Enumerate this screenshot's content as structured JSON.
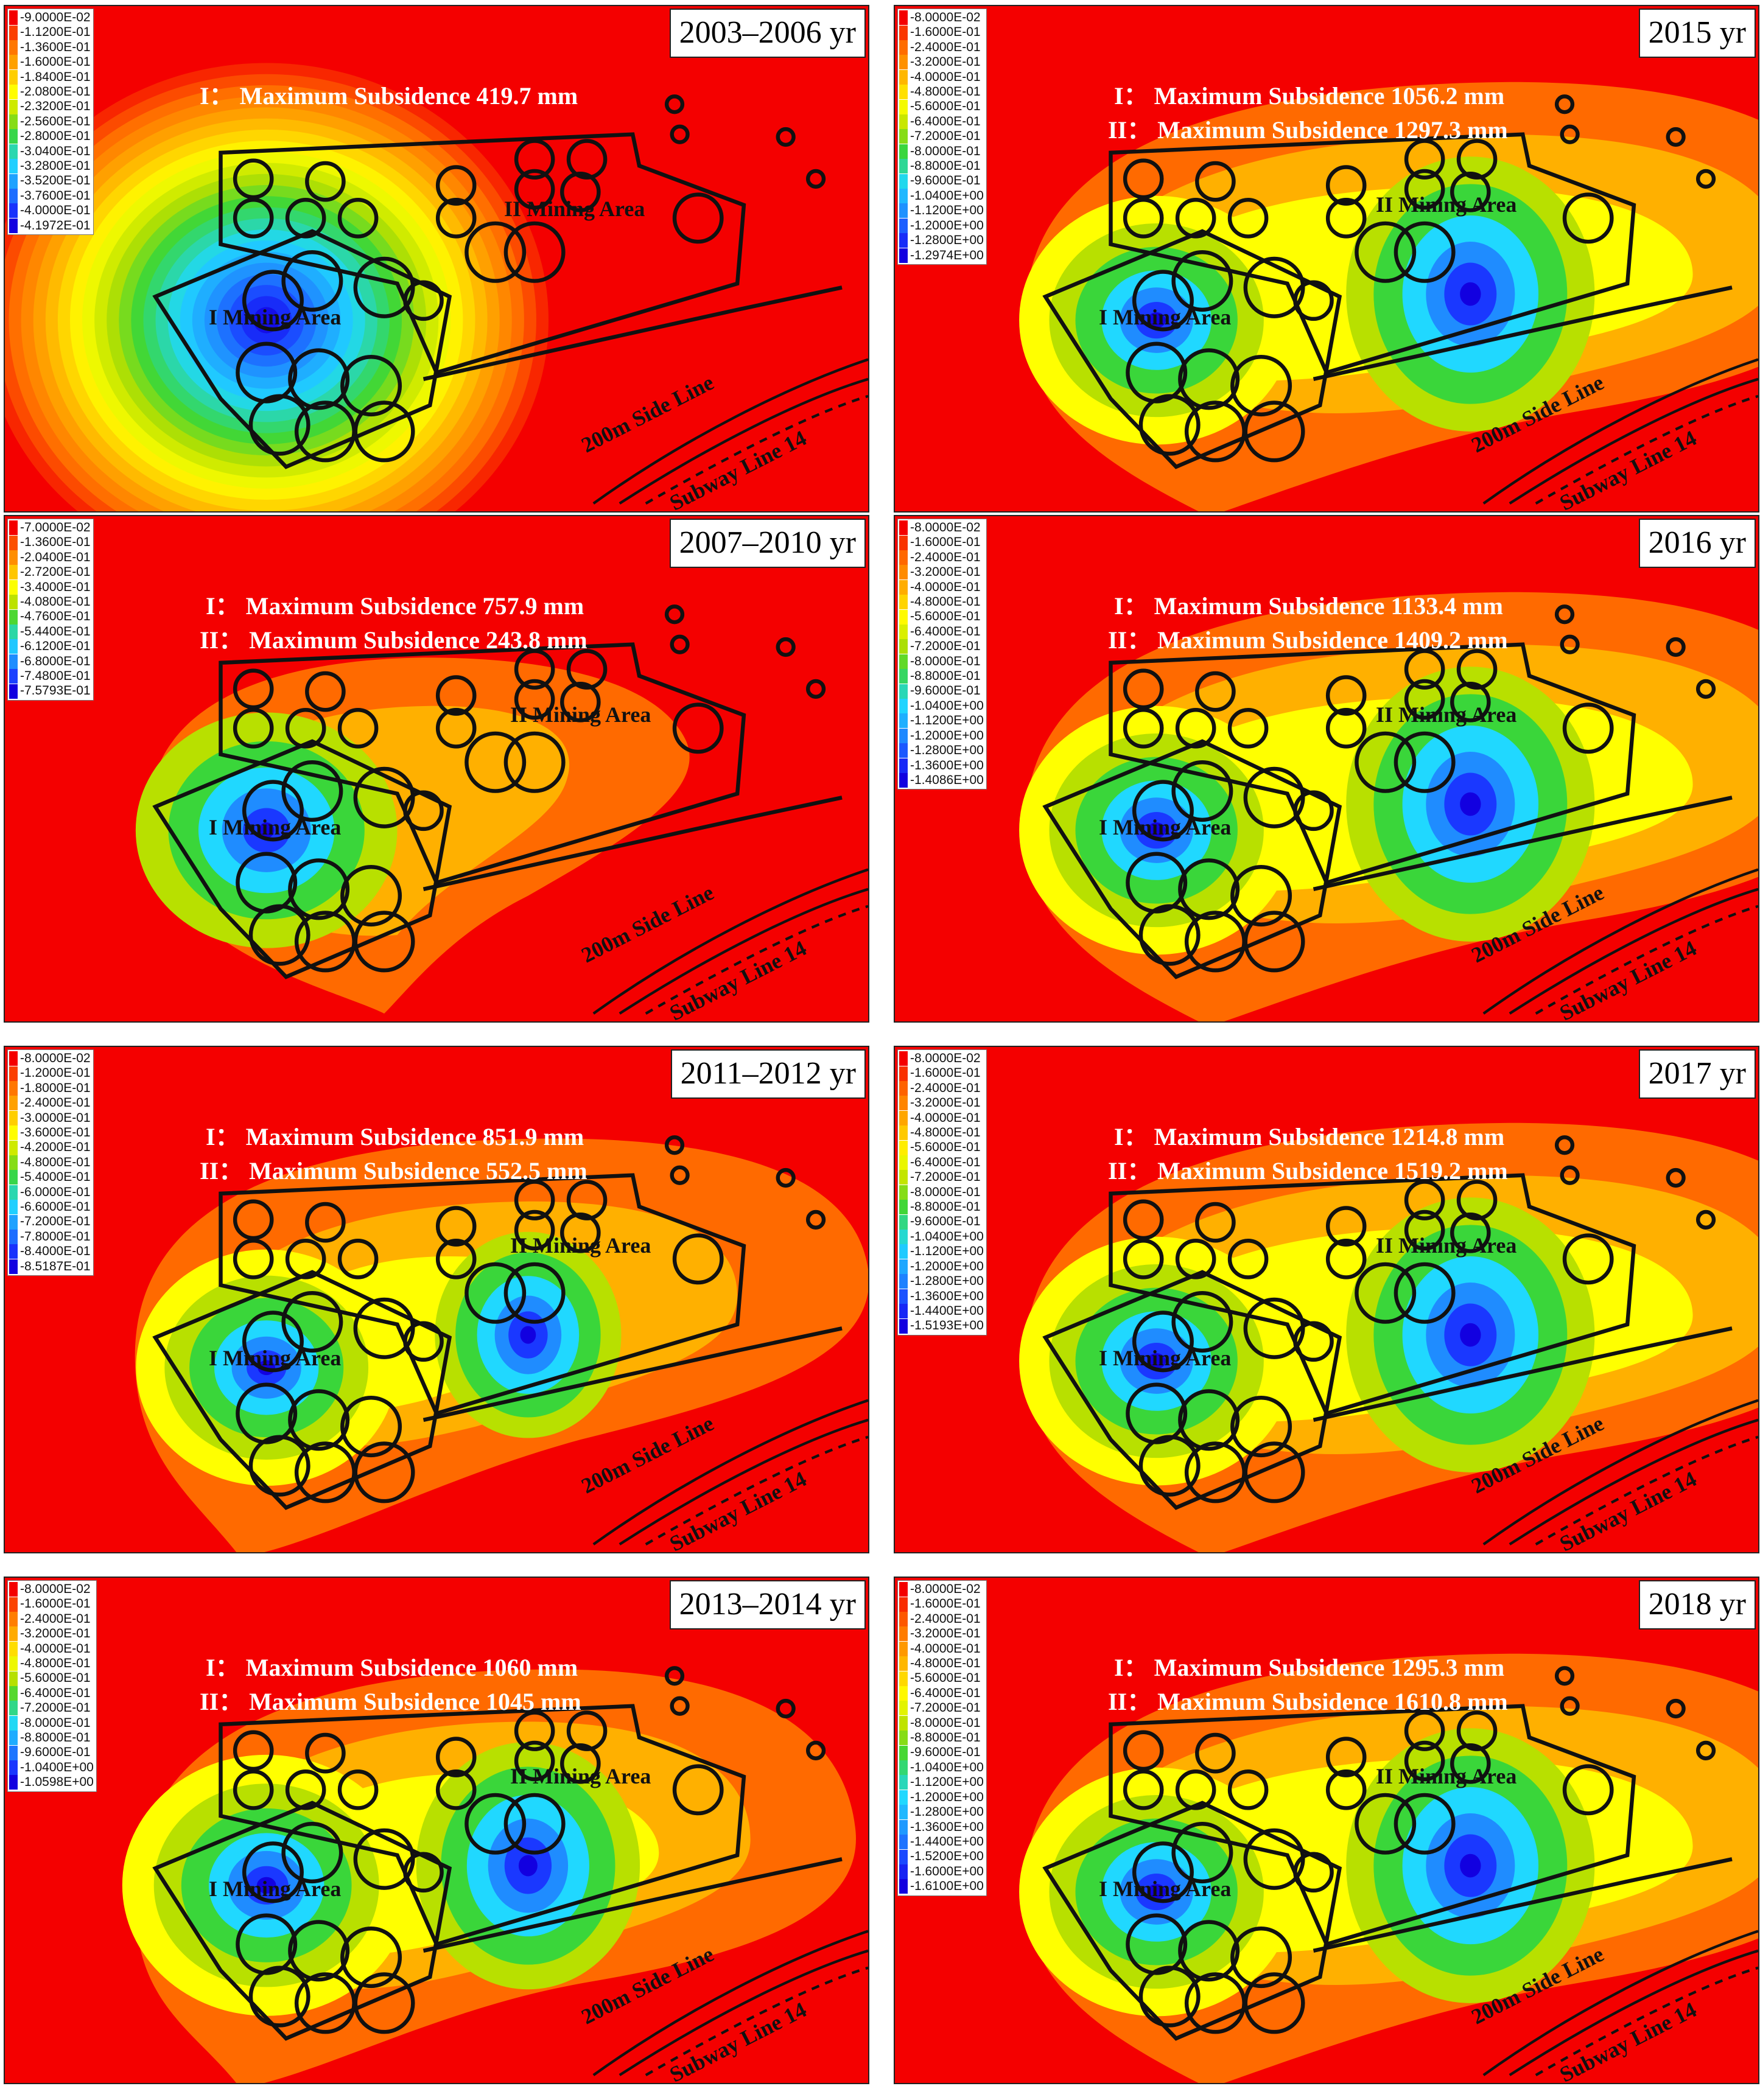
{
  "colors": {
    "red": "#f40000",
    "orange": "#ff6a00",
    "yellowOrange": "#ffb000",
    "yellow": "#ffff00",
    "yellowGreen": "#b8e000",
    "green": "#3ad63a",
    "cyan": "#20d8ff",
    "lightBlue": "#1f8cff",
    "blue": "#1a38ff",
    "darkBlue": "#1200e0"
  },
  "map_labels": {
    "mining_area_1": "I Mining Area",
    "mining_area_2": "II Mining Area",
    "side_line": "200m Side Line",
    "subway": "Subway Line 14"
  },
  "chart_data": [
    {
      "type": "heatmap",
      "title": "2003–2006 yr",
      "annotations": [
        "I： Maximum Subsidence 419.7 mm"
      ],
      "max_subsidence_mm": {
        "I": 419.7
      },
      "legend_levels": [
        "-9.0000E-02",
        "-1.1200E-01",
        "-1.3600E-01",
        "-1.6000E-01",
        "-1.8400E-01",
        "-2.0800E-01",
        "-2.3200E-01",
        "-2.5600E-01",
        "-2.8000E-01",
        "-3.0400E-01",
        "-3.2800E-01",
        "-3.5200E-01",
        "-3.7600E-01",
        "-4.0000E-01",
        "-4.1972E-01"
      ]
    },
    {
      "type": "heatmap",
      "title": "2015 yr",
      "annotations": [
        "I： Maximum Subsidence 1056.2 mm",
        "II： Maximum Subsidence 1297.3 mm"
      ],
      "max_subsidence_mm": {
        "I": 1056.2,
        "II": 1297.3
      },
      "legend_levels": [
        "-8.0000E-02",
        "-1.6000E-01",
        "-2.4000E-01",
        "-3.2000E-01",
        "-4.0000E-01",
        "-4.8000E-01",
        "-5.6000E-01",
        "-6.4000E-01",
        "-7.2000E-01",
        "-8.0000E-01",
        "-8.8000E-01",
        "-9.6000E-01",
        "-1.0400E+00",
        "-1.1200E+00",
        "-1.2000E+00",
        "-1.2800E+00",
        "-1.2974E+00"
      ]
    },
    {
      "type": "heatmap",
      "title": "2007–2010 yr",
      "annotations": [
        "I： Maximum Subsidence 757.9 mm",
        "II： Maximum Subsidence 243.8 mm"
      ],
      "max_subsidence_mm": {
        "I": 757.9,
        "II": 243.8
      },
      "legend_levels": [
        "-7.0000E-02",
        "-1.3600E-01",
        "-2.0400E-01",
        "-2.7200E-01",
        "-3.4000E-01",
        "-4.0800E-01",
        "-4.7600E-01",
        "-5.4400E-01",
        "-6.1200E-01",
        "-6.8000E-01",
        "-7.4800E-01",
        "-7.5793E-01"
      ]
    },
    {
      "type": "heatmap",
      "title": "2016 yr",
      "annotations": [
        "I： Maximum Subsidence 1133.4 mm",
        "II： Maximum Subsidence 1409.2 mm"
      ],
      "max_subsidence_mm": {
        "I": 1133.4,
        "II": 1409.2
      },
      "legend_levels": [
        "-8.0000E-02",
        "-1.6000E-01",
        "-2.4000E-01",
        "-3.2000E-01",
        "-4.0000E-01",
        "-4.8000E-01",
        "-5.6000E-01",
        "-6.4000E-01",
        "-7.2000E-01",
        "-8.0000E-01",
        "-8.8000E-01",
        "-9.6000E-01",
        "-1.0400E+00",
        "-1.1200E+00",
        "-1.2000E+00",
        "-1.2800E+00",
        "-1.3600E+00",
        "-1.4086E+00"
      ]
    },
    {
      "type": "heatmap",
      "title": "2011–2012 yr",
      "annotations": [
        "I： Maximum Subsidence 851.9 mm",
        "II： Maximum Subsidence 552.5 mm"
      ],
      "max_subsidence_mm": {
        "I": 851.9,
        "II": 552.5
      },
      "legend_levels": [
        "-8.0000E-02",
        "-1.2000E-01",
        "-1.8000E-01",
        "-2.4000E-01",
        "-3.0000E-01",
        "-3.6000E-01",
        "-4.2000E-01",
        "-4.8000E-01",
        "-5.4000E-01",
        "-6.0000E-01",
        "-6.6000E-01",
        "-7.2000E-01",
        "-7.8000E-01",
        "-8.4000E-01",
        "-8.5187E-01"
      ]
    },
    {
      "type": "heatmap",
      "title": "2017 yr",
      "annotations": [
        "I： Maximum Subsidence 1214.8 mm",
        "II： Maximum Subsidence 1519.2 mm"
      ],
      "max_subsidence_mm": {
        "I": 1214.8,
        "II": 1519.2
      },
      "legend_levels": [
        "-8.0000E-02",
        "-1.6000E-01",
        "-2.4000E-01",
        "-3.2000E-01",
        "-4.0000E-01",
        "-4.8000E-01",
        "-5.6000E-01",
        "-6.4000E-01",
        "-7.2000E-01",
        "-8.0000E-01",
        "-8.8000E-01",
        "-9.6000E-01",
        "-1.0400E+00",
        "-1.1200E+00",
        "-1.2000E+00",
        "-1.2800E+00",
        "-1.3600E+00",
        "-1.4400E+00",
        "-1.5193E+00"
      ]
    },
    {
      "type": "heatmap",
      "title": "2013–2014 yr",
      "annotations": [
        "I： Maximum Subsidence 1060 mm",
        "II： Maximum Subsidence 1045 mm"
      ],
      "max_subsidence_mm": {
        "I": 1060,
        "II": 1045
      },
      "legend_levels": [
        "-8.0000E-02",
        "-1.6000E-01",
        "-2.4000E-01",
        "-3.2000E-01",
        "-4.0000E-01",
        "-4.8000E-01",
        "-5.6000E-01",
        "-6.4000E-01",
        "-7.2000E-01",
        "-8.0000E-01",
        "-8.8000E-01",
        "-9.6000E-01",
        "-1.0400E+00",
        "-1.0598E+00"
      ]
    },
    {
      "type": "heatmap",
      "title": "2018 yr",
      "annotations": [
        "I： Maximum Subsidence 1295.3 mm",
        "II： Maximum Subsidence 1610.8 mm"
      ],
      "max_subsidence_mm": {
        "I": 1295.3,
        "II": 1610.8
      },
      "legend_levels": [
        "-8.0000E-02",
        "-1.6000E-01",
        "-2.4000E-01",
        "-3.2000E-01",
        "-4.0000E-01",
        "-4.8000E-01",
        "-5.6000E-01",
        "-6.4000E-01",
        "-7.2000E-01",
        "-8.0000E-01",
        "-8.8000E-01",
        "-9.6000E-01",
        "-1.0400E+00",
        "-1.1200E+00",
        "-1.2000E+00",
        "-1.2800E+00",
        "-1.3600E+00",
        "-1.4400E+00",
        "-1.5200E+00",
        "-1.6000E+00",
        "-1.6100E+00"
      ]
    }
  ]
}
